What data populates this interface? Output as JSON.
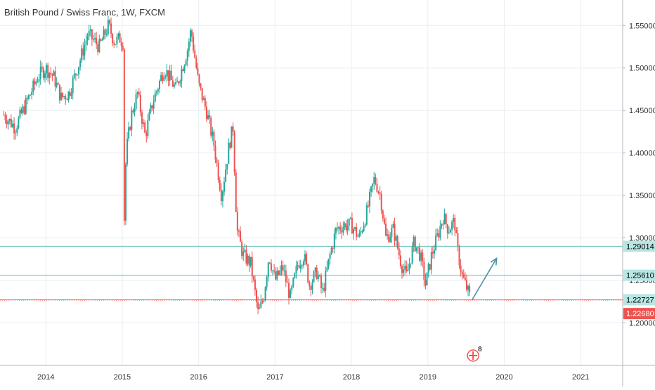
{
  "chart_data": {
    "type": "candlestick",
    "title": "British Pound / Swiss Franc, 1W, FXCM",
    "xlabel": "",
    "ylabel": "",
    "ylim": [
      1.15,
      1.58
    ],
    "grid": true,
    "x_ticks": [
      {
        "label": "2014",
        "value": 2014.0
      },
      {
        "label": "2015",
        "value": 2015.0
      },
      {
        "label": "2016",
        "value": 2016.0
      },
      {
        "label": "2017",
        "value": 2017.0
      },
      {
        "label": "2018",
        "value": 2018.0
      },
      {
        "label": "2019",
        "value": 2019.0
      },
      {
        "label": "2020",
        "value": 2020.0
      },
      {
        "label": "2021",
        "value": 2021.0
      }
    ],
    "y_ticks": [
      "1.55000",
      "1.50000",
      "1.45000",
      "1.40000",
      "1.35000",
      "1.30000",
      "1.25000",
      "1.20000"
    ],
    "series": [
      {
        "name": "",
        "close_path": [
          [
            2013.45,
            1.445
          ],
          [
            2013.6,
            1.43
          ],
          [
            2013.75,
            1.46
          ],
          [
            2013.9,
            1.49
          ],
          [
            2014.0,
            1.5
          ],
          [
            2014.1,
            1.49
          ],
          [
            2014.2,
            1.465
          ],
          [
            2014.3,
            1.47
          ],
          [
            2014.45,
            1.51
          ],
          [
            2014.55,
            1.54
          ],
          [
            2014.7,
            1.525
          ],
          [
            2014.82,
            1.55
          ],
          [
            2014.9,
            1.53
          ],
          [
            2014.97,
            1.535
          ],
          [
            2015.01,
            1.53
          ],
          [
            2015.02,
            1.3
          ],
          [
            2015.05,
            1.4
          ],
          [
            2015.12,
            1.445
          ],
          [
            2015.2,
            1.47
          ],
          [
            2015.3,
            1.42
          ],
          [
            2015.4,
            1.46
          ],
          [
            2015.55,
            1.5
          ],
          [
            2015.7,
            1.475
          ],
          [
            2015.85,
            1.52
          ],
          [
            2015.9,
            1.545
          ],
          [
            2016.0,
            1.48
          ],
          [
            2016.1,
            1.45
          ],
          [
            2016.2,
            1.41
          ],
          [
            2016.3,
            1.35
          ],
          [
            2016.4,
            1.41
          ],
          [
            2016.45,
            1.43
          ],
          [
            2016.5,
            1.31
          ],
          [
            2016.58,
            1.28
          ],
          [
            2016.68,
            1.27
          ],
          [
            2016.78,
            1.21
          ],
          [
            2016.85,
            1.23
          ],
          [
            2016.92,
            1.28
          ],
          [
            2017.0,
            1.25
          ],
          [
            2017.1,
            1.265
          ],
          [
            2017.2,
            1.23
          ],
          [
            2017.3,
            1.27
          ],
          [
            2017.38,
            1.28
          ],
          [
            2017.45,
            1.245
          ],
          [
            2017.55,
            1.26
          ],
          [
            2017.62,
            1.235
          ],
          [
            2017.72,
            1.28
          ],
          [
            2017.8,
            1.31
          ],
          [
            2017.9,
            1.315
          ],
          [
            2018.0,
            1.315
          ],
          [
            2018.1,
            1.3
          ],
          [
            2018.2,
            1.33
          ],
          [
            2018.3,
            1.37
          ],
          [
            2018.38,
            1.35
          ],
          [
            2018.45,
            1.3
          ],
          [
            2018.55,
            1.31
          ],
          [
            2018.65,
            1.27
          ],
          [
            2018.72,
            1.255
          ],
          [
            2018.82,
            1.295
          ],
          [
            2018.9,
            1.28
          ],
          [
            2018.97,
            1.245
          ],
          [
            2019.05,
            1.28
          ],
          [
            2019.12,
            1.3
          ],
          [
            2019.2,
            1.325
          ],
          [
            2019.27,
            1.31
          ],
          [
            2019.35,
            1.32
          ],
          [
            2019.38,
            1.29
          ],
          [
            2019.45,
            1.255
          ],
          [
            2019.52,
            1.238
          ],
          [
            2019.56,
            1.228
          ]
        ]
      }
    ],
    "price_labels": [
      {
        "label": "1.29014",
        "value": 1.29014,
        "color": "#b7e6e3",
        "text_color": "#000000"
      },
      {
        "label": "1.25610",
        "value": 1.2561,
        "color": "#b7e6e3",
        "text_color": "#000000"
      },
      {
        "label": "1.22727",
        "value": 1.22727,
        "color": "#b7e6e3",
        "text_color": "#000000"
      },
      {
        "label": "1.22680",
        "value": 1.2268,
        "color": "#ef5350",
        "text_color": "#ffffff"
      }
    ],
    "horizontal_lines": [
      1.29014,
      1.2561,
      1.22727
    ],
    "arrow": {
      "from": [
        2019.58,
        1.2273
      ],
      "to": [
        2019.9,
        1.276
      ]
    },
    "colors": {
      "up": "#26a69a",
      "down": "#ef5350",
      "lines": "#6cc3c0",
      "arrow": "#4a90a4",
      "grid": "#e9eef2",
      "axis_text": "#333333"
    },
    "event_marker": {
      "label": "8",
      "value_x": 2019.5
    }
  }
}
